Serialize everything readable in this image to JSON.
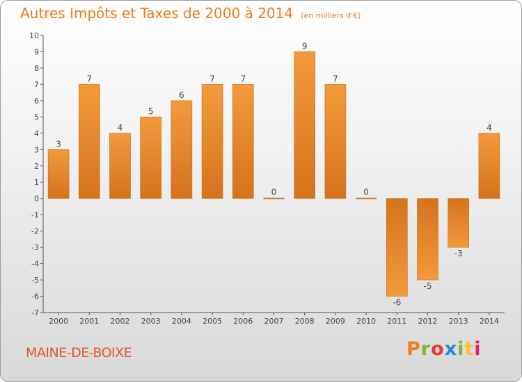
{
  "chart_data": {
    "type": "bar",
    "title": "Autres Impôts et Taxes de 2000 à 2014",
    "subtitle": "(en milliers d'€)",
    "categories": [
      "2000",
      "2001",
      "2002",
      "2003",
      "2004",
      "2005",
      "2006",
      "2007",
      "2008",
      "2009",
      "2010",
      "2011",
      "2012",
      "2013",
      "2014"
    ],
    "values": [
      3,
      7,
      4,
      5,
      6,
      7,
      7,
      0,
      9,
      7,
      0,
      -6,
      -5,
      -3,
      4
    ],
    "data_labels": [
      "3",
      "7",
      "4",
      "5",
      "6",
      "7",
      "7",
      "0",
      "9",
      "7",
      "0",
      "-6",
      "-5",
      "-3",
      "4"
    ],
    "yticks": [
      "10",
      "9",
      "8",
      "7",
      "6",
      "5",
      "4",
      "3",
      "2",
      "1",
      "0",
      "-1",
      "-2",
      "-3",
      "-4",
      "-5",
      "-6",
      "-7"
    ],
    "ylim": [
      -7,
      10
    ],
    "grid": false,
    "legend": "none",
    "bar_color": "#f29a3c",
    "bar_color_dark": "#d4731c"
  },
  "footer": {
    "place": "MAINE-DE-BOIXE",
    "logo_letters": [
      "P",
      "r",
      "o",
      "x",
      "i",
      "t",
      "i"
    ],
    "logo_colors": [
      "#f07e1a",
      "#7cb342",
      "#e53935",
      "#1e88e5",
      "#7cb342",
      "#fbc02d",
      "#e91e63"
    ]
  }
}
